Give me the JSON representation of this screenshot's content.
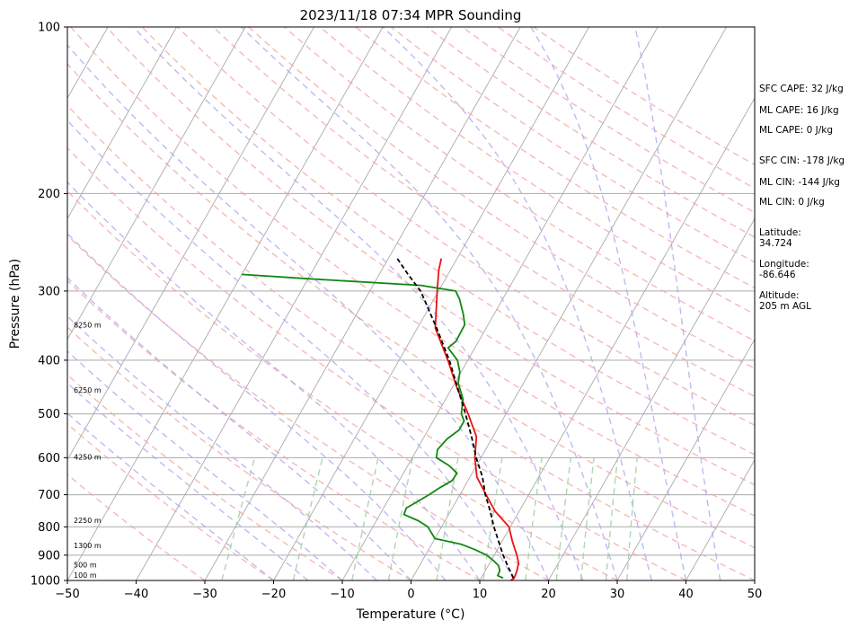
{
  "chart_data": {
    "type": "skew-t",
    "title": "2023/11/18 07:34 MPR Sounding",
    "xlabel": "Temperature (°C)",
    "ylabel": "Pressure (hPa)",
    "xlim": [
      -50,
      50
    ],
    "ylim": [
      1000,
      100
    ],
    "y_scale": "log",
    "x_ticks": [
      "−50",
      "−40",
      "−30",
      "−20",
      "−10",
      "0",
      "10",
      "20",
      "30",
      "40",
      "50"
    ],
    "y_ticks": [
      "100",
      "200",
      "300",
      "400",
      "500",
      "600",
      "700",
      "800",
      "900",
      "1000"
    ],
    "height_labels": [
      "8250 m",
      "6250 m",
      "4250 m",
      "2250 m",
      "1300 m",
      "500 m",
      "100 m"
    ],
    "colors": {
      "temperature": "#ee1111",
      "dewpoint": "#118811",
      "parcel": "#000000",
      "dry_adiabat": "#f4a0a0",
      "moist_adiabat": "#b0a8ee",
      "mixing_ratio": "#9fd09f",
      "isotherm": "#aaaaaa"
    },
    "series": [
      {
        "id": "temperature",
        "points": [
          [
            1000,
            14.5
          ],
          [
            990,
            14.8
          ],
          [
            960,
            14.6
          ],
          [
            930,
            14.2
          ],
          [
            900,
            13.3
          ],
          [
            850,
            11.5
          ],
          [
            800,
            9.8
          ],
          [
            750,
            6.5
          ],
          [
            700,
            3.8
          ],
          [
            650,
            1.0
          ],
          [
            600,
            -0.9
          ],
          [
            550,
            -2.4
          ],
          [
            500,
            -5.5
          ],
          [
            450,
            -9.2
          ],
          [
            400,
            -12.9
          ],
          [
            350,
            -17.4
          ],
          [
            300,
            -20.2
          ],
          [
            275,
            -21.7
          ],
          [
            262,
            -22.3
          ]
        ]
      },
      {
        "id": "dewpoint",
        "points": [
          [
            990,
            13.2
          ],
          [
            980,
            12.2
          ],
          [
            960,
            12.1
          ],
          [
            940,
            11.5
          ],
          [
            920,
            10.3
          ],
          [
            900,
            8.9
          ],
          [
            880,
            6.8
          ],
          [
            860,
            4.3
          ],
          [
            840,
            0.0
          ],
          [
            800,
            -2.0
          ],
          [
            780,
            -3.9
          ],
          [
            760,
            -6.5
          ],
          [
            740,
            -6.7
          ],
          [
            720,
            -5.6
          ],
          [
            700,
            -4.5
          ],
          [
            680,
            -3.5
          ],
          [
            660,
            -2.3
          ],
          [
            640,
            -2.2
          ],
          [
            620,
            -4.0
          ],
          [
            600,
            -6.5
          ],
          [
            580,
            -7.0
          ],
          [
            555,
            -6.5
          ],
          [
            535,
            -5.5
          ],
          [
            515,
            -5.5
          ],
          [
            500,
            -6.5
          ],
          [
            470,
            -7.5
          ],
          [
            440,
            -9.5
          ],
          [
            420,
            -10.2
          ],
          [
            400,
            -11.5
          ],
          [
            380,
            -13.9
          ],
          [
            370,
            -13.3
          ],
          [
            345,
            -13.4
          ],
          [
            330,
            -14.5
          ],
          [
            310,
            -16.3
          ],
          [
            300,
            -17.5
          ],
          [
            293,
            -23.0
          ],
          [
            285,
            -40.0
          ],
          [
            280,
            -50.0
          ]
        ]
      },
      {
        "id": "parcel",
        "points": [
          [
            990,
            14.7
          ],
          [
            940,
            12.8
          ],
          [
            900,
            11.3
          ],
          [
            850,
            9.5
          ],
          [
            800,
            7.6
          ],
          [
            750,
            5.8
          ],
          [
            700,
            3.7
          ],
          [
            650,
            1.8
          ],
          [
            600,
            -0.7
          ],
          [
            550,
            -3.1
          ],
          [
            500,
            -5.9
          ],
          [
            450,
            -9.1
          ],
          [
            400,
            -12.7
          ],
          [
            350,
            -17.2
          ],
          [
            300,
            -22.6
          ],
          [
            280,
            -25.8
          ],
          [
            262,
            -28.7
          ]
        ]
      }
    ],
    "annotations": [
      "SFC CAPE: 32 J/kg",
      "ML CAPE: 16 J/kg",
      "ML CAPE: 0 J/kg",
      "SFC CIN: -178 J/kg",
      "ML CIN: -144 J/kg",
      "ML CIN: 0 J/kg",
      "Latitude:",
      "34.724",
      "Longitude:",
      "-86.646",
      "Altitude:",
      "205 m AGL"
    ]
  }
}
